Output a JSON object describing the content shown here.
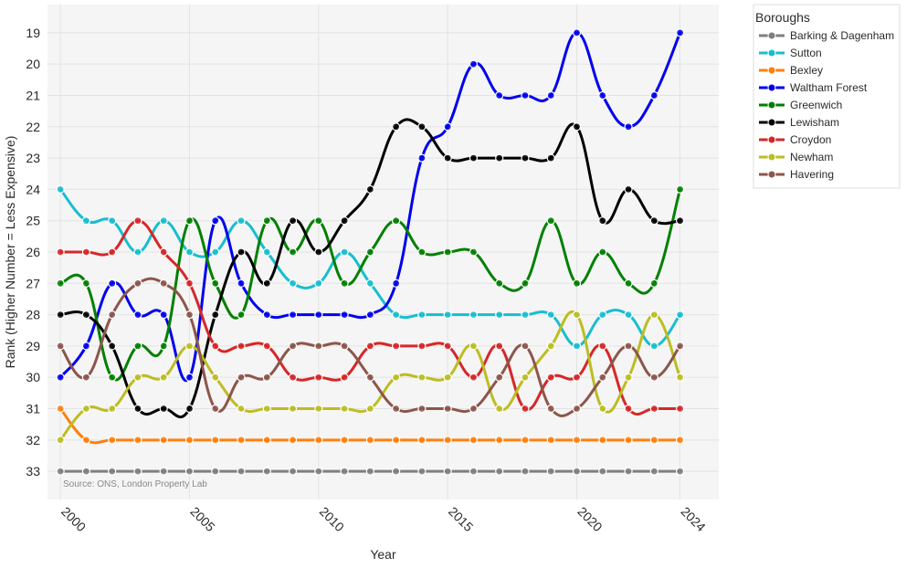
{
  "chart_data": {
    "type": "line",
    "title": "",
    "xlabel": "Year",
    "ylabel": "Rank (Higher Number = Less Expensive)",
    "y_reversed": true,
    "ylim": [
      33.9,
      18.1
    ],
    "xlim": [
      1999.5,
      2025.5
    ],
    "x_ticks": [
      2000,
      2005,
      2010,
      2015,
      2020,
      2024
    ],
    "x_tick_labels": [
      "2000",
      "2005",
      "2010",
      "2015",
      "2020",
      "2024"
    ],
    "y_ticks": [
      19,
      20,
      21,
      22,
      23,
      24,
      25,
      26,
      27,
      28,
      29,
      30,
      31,
      32,
      33
    ],
    "y_tick_labels": [
      "19",
      "20",
      "21",
      "22",
      "23",
      "24",
      "25",
      "26",
      "27",
      "28",
      "29",
      "30",
      "31",
      "32",
      "33"
    ],
    "grid": true,
    "legend_title": "Boroughs",
    "legend_position": "right",
    "source_note": "Source: ONS, London Property Lab",
    "x": [
      2000,
      2001,
      2002,
      2003,
      2004,
      2005,
      2006,
      2007,
      2008,
      2009,
      2010,
      2011,
      2012,
      2013,
      2014,
      2015,
      2016,
      2017,
      2018,
      2019,
      2020,
      2021,
      2022,
      2023,
      2024
    ],
    "series": [
      {
        "name": "Barking & Dagenham",
        "color": "#7f7f7f",
        "values": [
          33,
          33,
          33,
          33,
          33,
          33,
          33,
          33,
          33,
          33,
          33,
          33,
          33,
          33,
          33,
          33,
          33,
          33,
          33,
          33,
          33,
          33,
          33,
          33,
          33
        ]
      },
      {
        "name": "Sutton",
        "color": "#17becf",
        "values": [
          24,
          25,
          25,
          26,
          25,
          26,
          26,
          25,
          26,
          27,
          27,
          26,
          27,
          28,
          28,
          28,
          28,
          28,
          28,
          28,
          29,
          28,
          28,
          29,
          28
        ]
      },
      {
        "name": "Bexley",
        "color": "#ff7f0e",
        "values": [
          31,
          32,
          32,
          32,
          32,
          32,
          32,
          32,
          32,
          32,
          32,
          32,
          32,
          32,
          32,
          32,
          32,
          32,
          32,
          32,
          32,
          32,
          32,
          32,
          32
        ]
      },
      {
        "name": "Waltham Forest",
        "color": "#0000ee",
        "values": [
          30,
          29,
          27,
          28,
          28,
          30,
          25,
          27,
          28,
          28,
          28,
          28,
          28,
          27,
          23,
          22,
          20,
          21,
          21,
          21,
          19,
          21,
          22,
          21,
          19
        ]
      },
      {
        "name": "Greenwich",
        "color": "#008000",
        "values": [
          27,
          27,
          30,
          29,
          29,
          25,
          27,
          28,
          25,
          26,
          25,
          27,
          26,
          25,
          26,
          26,
          26,
          27,
          27,
          25,
          27,
          26,
          27,
          27,
          24
        ]
      },
      {
        "name": "Lewisham",
        "color": "#000000",
        "values": [
          28,
          28,
          29,
          31,
          31,
          31,
          28,
          26,
          27,
          25,
          26,
          25,
          24,
          22,
          22,
          23,
          23,
          23,
          23,
          23,
          22,
          25,
          24,
          25,
          25
        ]
      },
      {
        "name": "Croydon",
        "color": "#d62728",
        "values": [
          26,
          26,
          26,
          25,
          26,
          27,
          29,
          29,
          29,
          30,
          30,
          30,
          29,
          29,
          29,
          29,
          30,
          29,
          31,
          30,
          30,
          29,
          31,
          31,
          31
        ]
      },
      {
        "name": "Newham",
        "color": "#bcbd22",
        "values": [
          32,
          31,
          31,
          30,
          30,
          29,
          30,
          31,
          31,
          31,
          31,
          31,
          31,
          30,
          30,
          30,
          29,
          31,
          30,
          29,
          28,
          31,
          30,
          28,
          30
        ]
      },
      {
        "name": "Havering",
        "color": "#8c564b",
        "values": [
          29,
          30,
          28,
          27,
          27,
          28,
          31,
          30,
          30,
          29,
          29,
          29,
          30,
          31,
          31,
          31,
          31,
          30,
          29,
          31,
          31,
          30,
          29,
          30,
          29
        ]
      }
    ]
  }
}
